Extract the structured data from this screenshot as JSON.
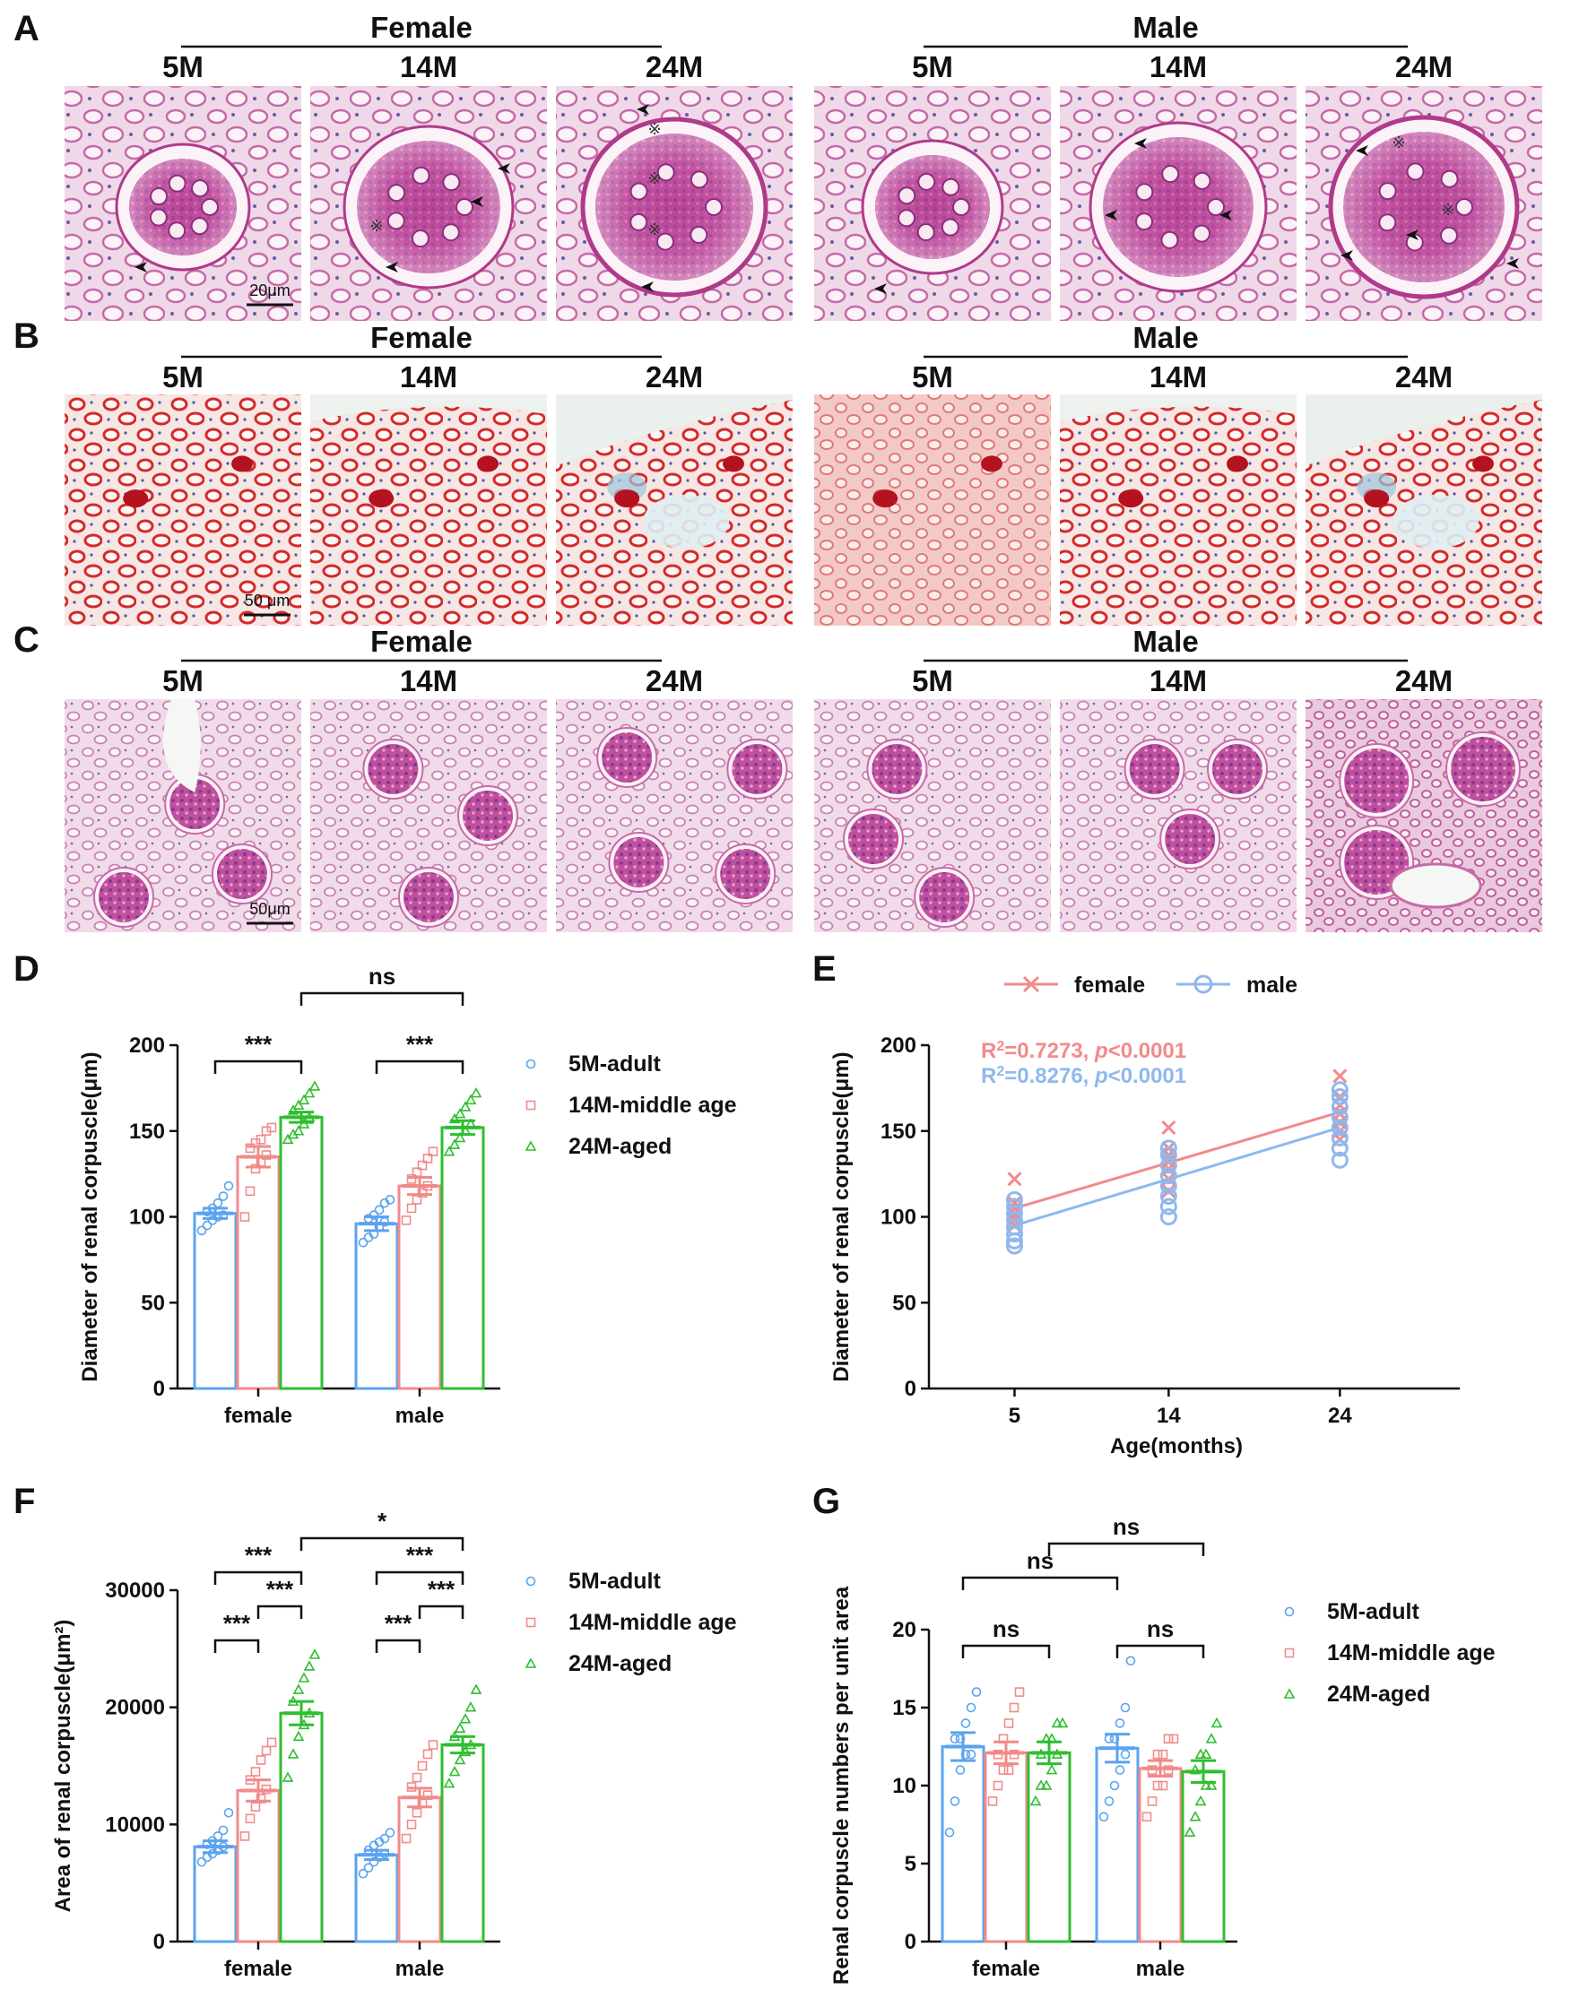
{
  "panels": {
    "A": {
      "letter": "A",
      "groups": [
        "Female",
        "Male"
      ],
      "ages": [
        "5M",
        "14M",
        "24M"
      ],
      "scale_bar": "20μm",
      "stain": "pas",
      "marker": "※"
    },
    "B": {
      "letter": "B",
      "groups": [
        "Female",
        "Male"
      ],
      "ages": [
        "5M",
        "14M",
        "24M"
      ],
      "scale_bar": "50 μm",
      "stain": "masson"
    },
    "C": {
      "letter": "C",
      "groups": [
        "Female",
        "Male"
      ],
      "ages": [
        "5M",
        "14M",
        "24M"
      ],
      "scale_bar": "50μm",
      "stain": "pas-low"
    }
  },
  "colors": {
    "adult": "#5ba3ef",
    "middle": "#f28a8a",
    "aged": "#2fbe2f",
    "female_line": "#f28a8a",
    "male_line": "#8fb8ee"
  },
  "legend_bar": [
    "5M-adult",
    "14M-middle age",
    "24M-aged"
  ],
  "legend_line": [
    "female",
    "male"
  ],
  "chart_data": [
    {
      "panel": "D",
      "type": "bar",
      "ylabel": "Diameter of renal corpuscle(μm)",
      "ylim": [
        0,
        200
      ],
      "yticks": [
        0,
        50,
        100,
        150,
        200
      ],
      "categories": [
        "female",
        "male"
      ],
      "series": [
        {
          "name": "5M-adult",
          "values": [
            102,
            96
          ],
          "sem": [
            3,
            4
          ],
          "points": [
            [
              92,
              95,
              98,
              100,
              101,
              103,
              105,
              108,
              112,
              118
            ],
            [
              85,
              88,
              90,
              94,
              97,
              99,
              101,
              104,
              108,
              110
            ]
          ]
        },
        {
          "name": "14M-middle age",
          "values": [
            135,
            118
          ],
          "sem": [
            6,
            5
          ],
          "points": [
            [
              100,
              115,
              128,
              132,
              136,
              140,
              143,
              145,
              150,
              152
            ],
            [
              98,
              105,
              110,
              114,
              118,
              122,
              126,
              130,
              134,
              138
            ]
          ]
        },
        {
          "name": "24M-aged",
          "values": [
            158,
            152
          ],
          "sem": [
            3,
            4
          ],
          "points": [
            [
              145,
              148,
              150,
              154,
              158,
              162,
              165,
              168,
              172,
              176
            ],
            [
              138,
              142,
              146,
              150,
              154,
              157,
              160,
              164,
              168,
              172
            ]
          ]
        }
      ],
      "brackets": [
        {
          "label": "***",
          "from": [
            "female",
            0
          ],
          "to": [
            "female",
            2
          ]
        },
        {
          "label": "***",
          "from": [
            "male",
            0
          ],
          "to": [
            "male",
            2
          ]
        },
        {
          "label": "ns",
          "from": [
            "female",
            2
          ],
          "to": [
            "male",
            2
          ]
        }
      ]
    },
    {
      "panel": "E",
      "type": "scatter",
      "xlabel": "Age(months)",
      "ylabel": "Diameter of renal corpuscle(μm)",
      "xticks": [
        5,
        14,
        24
      ],
      "xlim": [
        0,
        31
      ],
      "ylim": [
        0,
        200
      ],
      "yticks": [
        0,
        50,
        100,
        150,
        200
      ],
      "series": [
        {
          "name": "female",
          "fit": [
            [
              5,
              105
            ],
            [
              24,
              161
            ]
          ],
          "points": {
            "5": [
              95,
              98,
              100,
              102,
              105,
              108,
              122
            ],
            "14": [
              115,
              122,
              128,
              132,
              136,
              140,
              152
            ],
            "24": [
              145,
              150,
              155,
              160,
              165,
              170,
              182
            ]
          }
        },
        {
          "name": "male",
          "fit": [
            [
              5,
              95
            ],
            [
              24,
              152
            ]
          ],
          "points": {
            "5": [
              83,
              86,
              90,
              94,
              98,
              102,
              106,
              110
            ],
            "14": [
              100,
              106,
              112,
              118,
              124,
              130,
              136,
              140
            ],
            "24": [
              133,
              140,
              146,
              152,
              158,
              164,
              170,
              174
            ]
          }
        }
      ],
      "stats": [
        {
          "r2_label": "R",
          "r2_sup": "2",
          "r2_value": "=0.7273, ",
          "p_label": "p",
          "p_value": "<0.0001"
        },
        {
          "r2_label": "R",
          "r2_sup": "2",
          "r2_value": "=0.8276, ",
          "p_label": "p",
          "p_value": "<0.0001"
        }
      ]
    },
    {
      "panel": "F",
      "type": "bar",
      "ylabel": "Area of renal corpuscle(μm²)",
      "ylim": [
        0,
        30000
      ],
      "yticks": [
        0,
        10000,
        20000,
        30000
      ],
      "categories": [
        "female",
        "male"
      ],
      "series": [
        {
          "name": "5M-adult",
          "values": [
            8100,
            7400
          ],
          "sem": [
            500,
            400
          ],
          "points": [
            [
              6800,
              7200,
              7500,
              7800,
              8100,
              8300,
              8600,
              9000,
              9500,
              11000
            ],
            [
              5800,
              6300,
              6800,
              7200,
              7500,
              7800,
              8200,
              8500,
              8800,
              9300
            ]
          ]
        },
        {
          "name": "14M-middle age",
          "values": [
            12900,
            12300
          ],
          "sem": [
            900,
            800
          ],
          "points": [
            [
              9000,
              10500,
              11500,
              12200,
              13000,
              13800,
              14500,
              15500,
              16300,
              17000
            ],
            [
              8800,
              10000,
              11000,
              11800,
              12500,
              13200,
              14000,
              15000,
              16000,
              16800
            ]
          ]
        },
        {
          "name": "24M-aged",
          "values": [
            19500,
            16800
          ],
          "sem": [
            1000,
            700
          ],
          "points": [
            [
              14000,
              16000,
              17500,
              18500,
              19500,
              20500,
              21500,
              22500,
              23500,
              24500
            ],
            [
              13500,
              14500,
              15500,
              16200,
              16800,
              17500,
              18200,
              19000,
              20000,
              21500
            ]
          ]
        }
      ],
      "brackets": [
        {
          "label": "***",
          "from": [
            "female",
            0
          ],
          "to": [
            "female",
            1
          ]
        },
        {
          "label": "***",
          "from": [
            "female",
            1
          ],
          "to": [
            "female",
            2
          ]
        },
        {
          "label": "***",
          "from": [
            "female",
            0
          ],
          "to": [
            "female",
            2
          ]
        },
        {
          "label": "***",
          "from": [
            "male",
            0
          ],
          "to": [
            "male",
            1
          ]
        },
        {
          "label": "***",
          "from": [
            "male",
            1
          ],
          "to": [
            "male",
            2
          ]
        },
        {
          "label": "***",
          "from": [
            "male",
            0
          ],
          "to": [
            "male",
            2
          ]
        },
        {
          "label": "*",
          "from": [
            "female",
            2
          ],
          "to": [
            "male",
            2
          ]
        }
      ]
    },
    {
      "panel": "G",
      "type": "bar",
      "ylabel": "Renal corpuscle numbers per unit area",
      "ylim": [
        0,
        20
      ],
      "yticks": [
        0,
        5,
        10,
        15,
        20
      ],
      "categories": [
        "female",
        "male"
      ],
      "series": [
        {
          "name": "5M-adult",
          "values": [
            12.5,
            12.4
          ],
          "sem": [
            0.9,
            0.9
          ],
          "points": [
            [
              7,
              9,
              11,
              12,
              12,
              13,
              13,
              14,
              15,
              16
            ],
            [
              8,
              9,
              10,
              11,
              12,
              13,
              13,
              14,
              15,
              18
            ]
          ]
        },
        {
          "name": "14M-middle age",
          "values": [
            12.1,
            11.1
          ],
          "sem": [
            0.7,
            0.5
          ],
          "points": [
            [
              9,
              10,
              11,
              11,
              12,
              12,
              13,
              14,
              15,
              16
            ],
            [
              8,
              9,
              10,
              10,
              11,
              11,
              12,
              12,
              13,
              13
            ]
          ]
        },
        {
          "name": "24M-aged",
          "values": [
            12.1,
            10.9
          ],
          "sem": [
            0.7,
            0.7
          ],
          "points": [
            [
              9,
              10,
              10,
              11,
              12,
              12,
              13,
              13,
              14,
              14
            ],
            [
              7,
              8,
              9,
              10,
              10,
              11,
              12,
              12,
              13,
              14
            ]
          ]
        }
      ],
      "brackets": [
        {
          "label": "ns",
          "from": [
            "female",
            0
          ],
          "to": [
            "female",
            2
          ]
        },
        {
          "label": "ns",
          "from": [
            "male",
            0
          ],
          "to": [
            "male",
            2
          ]
        },
        {
          "label": "ns",
          "from": [
            "female",
            0
          ],
          "to": [
            "male",
            0
          ]
        },
        {
          "label": "ns",
          "from": [
            "female",
            2
          ],
          "to": [
            "male",
            2
          ]
        }
      ]
    }
  ]
}
